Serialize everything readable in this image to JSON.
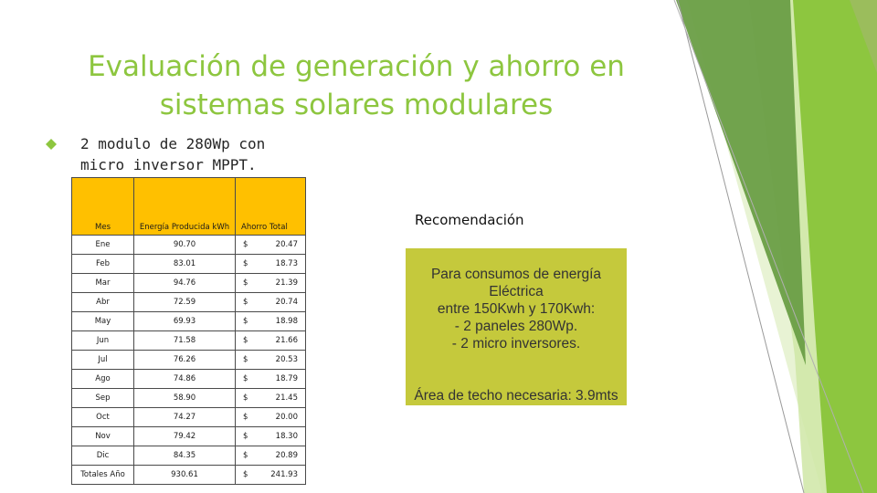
{
  "slide": {
    "title": "Evaluación de generación y ahorro en sistemas solares modulares",
    "bullet": "2 modulo de 280Wp con micro inversor MPPT."
  },
  "table": {
    "headers": [
      "Mes",
      "Energía Producida kWh",
      "Ahorro Total"
    ],
    "rows": [
      {
        "mes": "Ene",
        "energia": "90.70",
        "cur": "$",
        "ahorro": "20.47"
      },
      {
        "mes": "Feb",
        "energia": "83.01",
        "cur": "$",
        "ahorro": "18.73"
      },
      {
        "mes": "Mar",
        "energia": "94.76",
        "cur": "$",
        "ahorro": "21.39"
      },
      {
        "mes": "Abr",
        "energia": "72.59",
        "cur": "$",
        "ahorro": "20.74"
      },
      {
        "mes": "May",
        "energia": "69.93",
        "cur": "$",
        "ahorro": "18.98"
      },
      {
        "mes": "Jun",
        "energia": "71.58",
        "cur": "$",
        "ahorro": "21.66"
      },
      {
        "mes": "Jul",
        "energia": "76.26",
        "cur": "$",
        "ahorro": "20.53"
      },
      {
        "mes": "Ago",
        "energia": "74.86",
        "cur": "$",
        "ahorro": "18.79"
      },
      {
        "mes": "Sep",
        "energia": "58.90",
        "cur": "$",
        "ahorro": "21.45"
      },
      {
        "mes": "Oct",
        "energia": "74.27",
        "cur": "$",
        "ahorro": "20.00"
      },
      {
        "mes": "Nov",
        "energia": "79.42",
        "cur": "$",
        "ahorro": "18.30"
      },
      {
        "mes": "Dic",
        "energia": "84.35",
        "cur": "$",
        "ahorro": "20.89"
      },
      {
        "mes": "Totales Año",
        "energia": "930.61",
        "cur": "$",
        "ahorro": "241.93"
      }
    ],
    "header_color": "#ffc000"
  },
  "recommendation": {
    "title": "Recomendación",
    "line1": "Para consumos de energía Eléctrica",
    "line2": "entre 150Kwh y 170Kwh:",
    "line3": "- 2 paneles 280Wp.",
    "line4": "- 2 micro inversores.",
    "line5": "Área de techo necesaria: 3.9mts",
    "box_color": "#c5c93c"
  },
  "theme": {
    "accent": "#8dc63f",
    "icon": "diamond-bullet-icon"
  }
}
